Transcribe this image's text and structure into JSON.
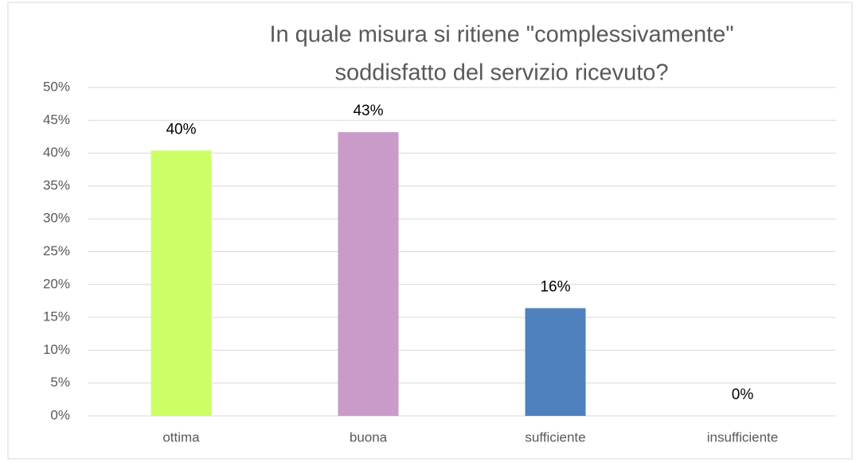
{
  "chart_data": {
    "type": "bar",
    "title": [
      "In quale misura si ritiene \"complessivamente\"",
      "soddisfatto del servizio ricevuto?"
    ],
    "categories": [
      "ottima",
      "buona",
      "sufficiente",
      "insufficiente"
    ],
    "values": [
      40.4,
      43.2,
      16.4,
      0
    ],
    "value_labels": [
      "40%",
      "43%",
      "16%",
      "0%"
    ],
    "colors": [
      "#ccff66",
      "#c99bc9",
      "#4f81bd",
      "#4f81bd"
    ],
    "ylim": [
      0,
      50
    ],
    "yticks": [
      {
        "value": 0,
        "label": "0%"
      },
      {
        "value": 5,
        "label": "5%"
      },
      {
        "value": 10,
        "label": "10%"
      },
      {
        "value": 15,
        "label": "15%"
      },
      {
        "value": 20,
        "label": "20%"
      },
      {
        "value": 25,
        "label": "25%"
      },
      {
        "value": 30,
        "label": "30%"
      },
      {
        "value": 35,
        "label": "35%"
      },
      {
        "value": 40,
        "label": "40%"
      },
      {
        "value": 45,
        "label": "45%"
      },
      {
        "value": 50,
        "label": "50%"
      }
    ],
    "grid": true
  }
}
